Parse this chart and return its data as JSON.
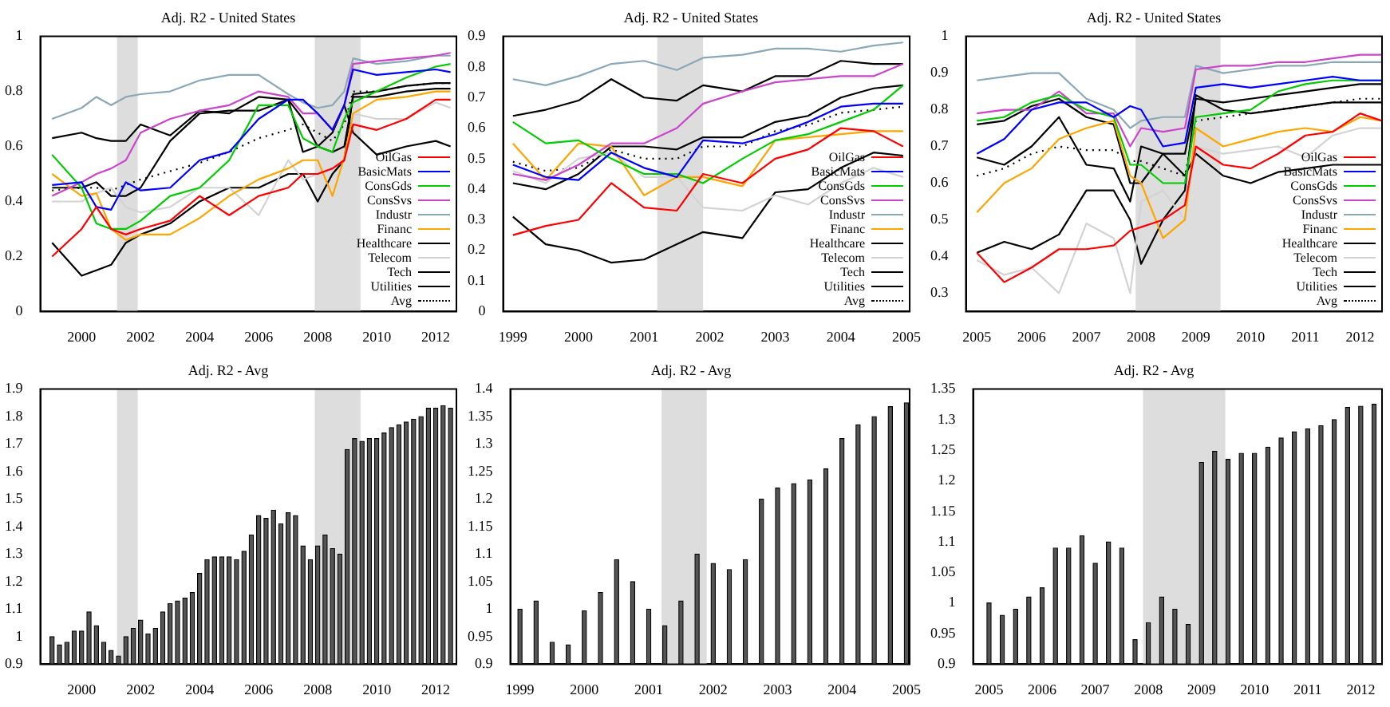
{
  "chart_data": [
    {
      "type": "line",
      "title": "Adj. R2 - United States",
      "x": [
        1999,
        2000,
        2000.5,
        2001,
        2001.5,
        2002,
        2003,
        2004,
        2005,
        2006,
        2007,
        2007.5,
        2008,
        2008.5,
        2008.9,
        2009.2,
        2010,
        2011,
        2012,
        2012.5
      ],
      "xlim": [
        1998.6,
        2012.7
      ],
      "xticks": [
        2000,
        2002,
        2004,
        2006,
        2008,
        2010,
        2012
      ],
      "ylim": [
        0,
        1
      ],
      "yticks": [
        0,
        0.2,
        0.4,
        0.6,
        0.8,
        1
      ],
      "grid": false,
      "legend": "bottom right",
      "bands": [
        {
          "axis": "x",
          "from": 2001.2,
          "to": 2001.9,
          "color": "#dddddd"
        },
        {
          "axis": "x",
          "from": 2007.9,
          "to": 2009.45,
          "color": "#dddddd"
        }
      ],
      "series": [
        {
          "name": "OilGas",
          "color": "#ff0000",
          "values": [
            0.2,
            0.3,
            0.38,
            0.3,
            0.28,
            0.3,
            0.33,
            0.42,
            0.35,
            0.42,
            0.45,
            0.5,
            0.5,
            0.52,
            0.55,
            0.68,
            0.66,
            0.7,
            0.77,
            0.77
          ]
        },
        {
          "name": "BasicMats",
          "color": "#0000ff",
          "values": [
            0.46,
            0.47,
            0.38,
            0.37,
            0.47,
            0.44,
            0.45,
            0.55,
            0.58,
            0.7,
            0.77,
            0.77,
            0.72,
            0.66,
            0.75,
            0.88,
            0.86,
            0.87,
            0.88,
            0.87
          ]
        },
        {
          "name": "ConsGds",
          "color": "#00cc00",
          "values": [
            0.57,
            0.45,
            0.32,
            0.3,
            0.3,
            0.33,
            0.42,
            0.45,
            0.55,
            0.75,
            0.75,
            0.63,
            0.6,
            0.58,
            0.7,
            0.76,
            0.8,
            0.85,
            0.89,
            0.9
          ]
        },
        {
          "name": "ConsSvs",
          "color": "#cc44cc",
          "values": [
            0.42,
            0.47,
            0.5,
            0.52,
            0.55,
            0.65,
            0.7,
            0.73,
            0.75,
            0.8,
            0.78,
            0.72,
            0.72,
            0.66,
            0.75,
            0.9,
            0.91,
            0.92,
            0.93,
            0.94
          ]
        },
        {
          "name": "Industr",
          "color": "#8aa8b8",
          "values": [
            0.7,
            0.74,
            0.78,
            0.75,
            0.78,
            0.79,
            0.8,
            0.84,
            0.86,
            0.86,
            0.79,
            0.76,
            0.74,
            0.75,
            0.8,
            0.92,
            0.9,
            0.91,
            0.93,
            0.93
          ]
        },
        {
          "name": "Financ",
          "color": "#ffa500",
          "values": [
            0.5,
            0.42,
            0.43,
            0.3,
            0.26,
            0.28,
            0.28,
            0.34,
            0.42,
            0.48,
            0.52,
            0.55,
            0.55,
            0.42,
            0.56,
            0.72,
            0.77,
            0.78,
            0.8,
            0.8
          ]
        },
        {
          "name": "Healthcare",
          "color": "#000000",
          "values": [
            0.63,
            0.65,
            0.63,
            0.62,
            0.62,
            0.68,
            0.64,
            0.73,
            0.72,
            0.78,
            0.77,
            0.58,
            0.6,
            0.58,
            0.6,
            0.78,
            0.78,
            0.8,
            0.81,
            0.81
          ]
        },
        {
          "name": "Telecom",
          "color": "#d3d3d3",
          "values": [
            0.4,
            0.4,
            0.43,
            0.45,
            0.38,
            0.36,
            0.38,
            0.45,
            0.45,
            0.35,
            0.55,
            0.48,
            0.5,
            0.52,
            0.55,
            0.72,
            0.7,
            0.7,
            0.76,
            0.74
          ]
        },
        {
          "name": "Tech",
          "color": "#000000",
          "values": [
            0.25,
            0.13,
            0.15,
            0.17,
            0.25,
            0.28,
            0.32,
            0.4,
            0.45,
            0.45,
            0.5,
            0.5,
            0.4,
            0.5,
            0.55,
            0.79,
            0.8,
            0.82,
            0.83,
            0.83
          ]
        },
        {
          "name": "Utilities",
          "color": "#000000",
          "values": [
            0.45,
            0.45,
            0.47,
            0.42,
            0.42,
            0.45,
            0.62,
            0.72,
            0.73,
            0.73,
            0.77,
            0.7,
            0.6,
            0.65,
            0.75,
            0.65,
            0.57,
            0.6,
            0.62,
            0.6
          ]
        },
        {
          "name": "Avg",
          "color": "#000000",
          "line_style": "dotted",
          "values": [
            0.44,
            0.45,
            0.45,
            0.44,
            0.46,
            0.48,
            0.51,
            0.54,
            0.58,
            0.63,
            0.66,
            0.68,
            0.65,
            0.62,
            0.68,
            0.8,
            0.8,
            0.82,
            0.83,
            0.83
          ]
        }
      ]
    },
    {
      "type": "line",
      "title": "Adj. R2 - United States",
      "x": [
        1999,
        1999.5,
        2000,
        2000.5,
        2001,
        2001.5,
        2001.9,
        2002.5,
        2003,
        2003.5,
        2004,
        2004.5,
        2004.95
      ],
      "xlim": [
        1998.85,
        2005.05
      ],
      "xticks": [
        1999,
        2000,
        2001,
        2002,
        2003,
        2004,
        2005
      ],
      "ylim": [
        0,
        0.9
      ],
      "yticks": [
        0,
        0.1,
        0.2,
        0.3,
        0.4,
        0.5,
        0.6,
        0.7,
        0.8,
        0.9
      ],
      "grid": false,
      "legend": "bottom right",
      "bands": [
        {
          "axis": "x",
          "from": 2001.2,
          "to": 2001.9,
          "color": "#dddddd"
        }
      ],
      "series": [
        {
          "name": "OilGas",
          "color": "#ff0000",
          "values": [
            0.25,
            0.28,
            0.3,
            0.42,
            0.34,
            0.33,
            0.45,
            0.42,
            0.5,
            0.53,
            0.6,
            0.59,
            0.54
          ]
        },
        {
          "name": "BasicMats",
          "color": "#0000ff",
          "values": [
            0.48,
            0.44,
            0.43,
            0.52,
            0.47,
            0.44,
            0.56,
            0.55,
            0.58,
            0.62,
            0.67,
            0.68,
            0.68
          ]
        },
        {
          "name": "ConsGds",
          "color": "#00cc00",
          "values": [
            0.62,
            0.55,
            0.56,
            0.5,
            0.45,
            0.45,
            0.42,
            0.5,
            0.56,
            0.58,
            0.62,
            0.66,
            0.74
          ]
        },
        {
          "name": "ConsSvs",
          "color": "#cc44cc",
          "values": [
            0.45,
            0.43,
            0.48,
            0.55,
            0.55,
            0.6,
            0.68,
            0.72,
            0.75,
            0.76,
            0.77,
            0.77,
            0.81
          ]
        },
        {
          "name": "Industr",
          "color": "#8aa8b8",
          "values": [
            0.76,
            0.74,
            0.77,
            0.81,
            0.82,
            0.79,
            0.83,
            0.84,
            0.86,
            0.86,
            0.85,
            0.87,
            0.88
          ]
        },
        {
          "name": "Financ",
          "color": "#ffa500",
          "values": [
            0.55,
            0.43,
            0.55,
            0.54,
            0.38,
            0.44,
            0.44,
            0.41,
            0.56,
            0.57,
            0.58,
            0.59,
            0.59
          ]
        },
        {
          "name": "Healthcare",
          "color": "#000000",
          "values": [
            0.64,
            0.66,
            0.69,
            0.76,
            0.7,
            0.69,
            0.74,
            0.72,
            0.77,
            0.77,
            0.82,
            0.81,
            0.81
          ]
        },
        {
          "name": "Telecom",
          "color": "#d3d3d3",
          "values": [
            0.46,
            0.42,
            0.5,
            0.52,
            0.44,
            0.44,
            0.34,
            0.33,
            0.38,
            0.35,
            0.42,
            0.47,
            0.44
          ]
        },
        {
          "name": "Tech",
          "color": "#000000",
          "values": [
            0.31,
            0.22,
            0.2,
            0.16,
            0.17,
            0.22,
            0.26,
            0.24,
            0.39,
            0.4,
            0.47,
            0.52,
            0.51
          ]
        },
        {
          "name": "Utilities",
          "color": "#000000",
          "values": [
            0.42,
            0.4,
            0.45,
            0.54,
            0.54,
            0.53,
            0.57,
            0.57,
            0.62,
            0.64,
            0.7,
            0.73,
            0.74
          ]
        },
        {
          "name": "Avg",
          "color": "#000000",
          "line_style": "dotted",
          "values": [
            0.49,
            0.46,
            0.47,
            0.53,
            0.5,
            0.5,
            0.54,
            0.54,
            0.59,
            0.61,
            0.65,
            0.66,
            0.67
          ]
        }
      ]
    },
    {
      "type": "line",
      "title": "Adj. R2 - United States",
      "x": [
        2005,
        2005.5,
        2006,
        2006.5,
        2007,
        2007.5,
        2007.8,
        2008,
        2008.4,
        2008.8,
        2009,
        2009.5,
        2010,
        2010.5,
        2011,
        2011.5,
        2012,
        2012.4
      ],
      "xlim": [
        2004.8,
        2012.4
      ],
      "xticks": [
        2005,
        2006,
        2007,
        2008,
        2009,
        2010,
        2011,
        2012
      ],
      "ylim": [
        0.25,
        1
      ],
      "yticks": [
        0.3,
        0.4,
        0.5,
        0.6,
        0.7,
        0.8,
        0.9,
        1
      ],
      "grid": false,
      "legend": "bottom right",
      "bands": [
        {
          "axis": "x",
          "from": 2007.9,
          "to": 2009.45,
          "color": "#dddddd"
        }
      ],
      "series": [
        {
          "name": "OilGas",
          "color": "#ff0000",
          "values": [
            0.41,
            0.33,
            0.37,
            0.42,
            0.42,
            0.43,
            0.47,
            0.48,
            0.5,
            0.54,
            0.7,
            0.65,
            0.64,
            0.68,
            0.73,
            0.74,
            0.79,
            0.77
          ]
        },
        {
          "name": "BasicMats",
          "color": "#0000ff",
          "values": [
            0.68,
            0.72,
            0.8,
            0.82,
            0.82,
            0.78,
            0.81,
            0.8,
            0.7,
            0.71,
            0.86,
            0.87,
            0.86,
            0.87,
            0.88,
            0.89,
            0.88,
            0.88
          ]
        },
        {
          "name": "ConsGds",
          "color": "#00cc00",
          "values": [
            0.77,
            0.78,
            0.82,
            0.84,
            0.8,
            0.78,
            0.65,
            0.65,
            0.6,
            0.6,
            0.78,
            0.79,
            0.8,
            0.85,
            0.87,
            0.88,
            0.88,
            0.88
          ]
        },
        {
          "name": "ConsSvs",
          "color": "#cc44cc",
          "values": [
            0.79,
            0.8,
            0.8,
            0.85,
            0.79,
            0.79,
            0.7,
            0.75,
            0.74,
            0.75,
            0.91,
            0.92,
            0.92,
            0.93,
            0.93,
            0.94,
            0.95,
            0.95
          ]
        },
        {
          "name": "Industr",
          "color": "#8aa8b8",
          "values": [
            0.88,
            0.89,
            0.9,
            0.9,
            0.83,
            0.8,
            0.75,
            0.77,
            0.78,
            0.78,
            0.92,
            0.9,
            0.91,
            0.92,
            0.92,
            0.93,
            0.93,
            0.93
          ]
        },
        {
          "name": "Financ",
          "color": "#ffa500",
          "values": [
            0.52,
            0.6,
            0.64,
            0.72,
            0.75,
            0.77,
            0.62,
            0.6,
            0.45,
            0.5,
            0.75,
            0.7,
            0.72,
            0.74,
            0.75,
            0.74,
            0.78,
            0.77
          ]
        },
        {
          "name": "Healthcare",
          "color": "#000000",
          "values": [
            0.76,
            0.77,
            0.81,
            0.83,
            0.78,
            0.76,
            0.6,
            0.6,
            0.68,
            0.68,
            0.83,
            0.82,
            0.83,
            0.84,
            0.85,
            0.86,
            0.87,
            0.87
          ]
        },
        {
          "name": "Telecom",
          "color": "#d3d3d3",
          "values": [
            0.39,
            0.35,
            0.37,
            0.3,
            0.49,
            0.45,
            0.3,
            0.55,
            0.58,
            0.5,
            0.7,
            0.68,
            0.69,
            0.7,
            0.67,
            0.73,
            0.75,
            0.75
          ]
        },
        {
          "name": "Tech",
          "color": "#000000",
          "values": [
            0.41,
            0.44,
            0.42,
            0.46,
            0.58,
            0.58,
            0.5,
            0.38,
            0.5,
            0.58,
            0.84,
            0.8,
            0.79,
            0.8,
            0.81,
            0.82,
            0.82,
            0.82
          ]
        },
        {
          "name": "Utilities",
          "color": "#000000",
          "values": [
            0.67,
            0.65,
            0.7,
            0.78,
            0.65,
            0.64,
            0.55,
            0.7,
            0.68,
            0.62,
            0.68,
            0.62,
            0.6,
            0.63,
            0.64,
            0.65,
            0.65,
            0.65
          ]
        },
        {
          "name": "Avg",
          "color": "#000000",
          "line_style": "dotted",
          "values": [
            0.62,
            0.64,
            0.68,
            0.7,
            0.69,
            0.69,
            0.66,
            0.66,
            0.64,
            0.62,
            0.77,
            0.78,
            0.79,
            0.8,
            0.81,
            0.82,
            0.83,
            0.83
          ]
        }
      ]
    },
    {
      "type": "bar",
      "title": "Adj. R2 - Avg",
      "color": "#555555",
      "xlim": [
        1998.6,
        2012.7
      ],
      "xticks": [
        2000,
        2002,
        2004,
        2006,
        2008,
        2010,
        2012
      ],
      "ylim": [
        0.9,
        1.9
      ],
      "yticks": [
        0.9,
        1,
        1.1,
        1.2,
        1.3,
        1.4,
        1.5,
        1.6,
        1.7,
        1.8,
        1.9
      ],
      "grid": false,
      "bands": [
        {
          "axis": "x",
          "from": 2001.2,
          "to": 2001.9,
          "color": "#dddddd"
        },
        {
          "axis": "x",
          "from": 2007.9,
          "to": 2009.45,
          "color": "#dddddd"
        }
      ],
      "x": [
        1999,
        1999.25,
        1999.5,
        1999.75,
        2000,
        2000.25,
        2000.5,
        2000.75,
        2001,
        2001.25,
        2001.5,
        2001.75,
        2002,
        2002.25,
        2002.5,
        2002.75,
        2003,
        2003.25,
        2003.5,
        2003.75,
        2004,
        2004.25,
        2004.5,
        2004.75,
        2005,
        2005.25,
        2005.5,
        2005.75,
        2006,
        2006.25,
        2006.5,
        2006.75,
        2007,
        2007.25,
        2007.5,
        2007.75,
        2008,
        2008.25,
        2008.5,
        2008.75,
        2009,
        2009.25,
        2009.5,
        2009.75,
        2010,
        2010.25,
        2010.5,
        2010.75,
        2011,
        2011.25,
        2011.5,
        2011.75,
        2012,
        2012.25,
        2012.5
      ],
      "values": [
        1.0,
        0.97,
        0.98,
        1.02,
        1.02,
        1.09,
        1.04,
        0.98,
        0.95,
        0.93,
        1.0,
        1.03,
        1.06,
        1.01,
        1.03,
        1.09,
        1.12,
        1.13,
        1.14,
        1.16,
        1.23,
        1.28,
        1.29,
        1.29,
        1.29,
        1.28,
        1.31,
        1.37,
        1.44,
        1.43,
        1.46,
        1.41,
        1.45,
        1.44,
        1.33,
        1.28,
        1.33,
        1.37,
        1.32,
        1.3,
        1.68,
        1.72,
        1.71,
        1.72,
        1.72,
        1.74,
        1.76,
        1.77,
        1.78,
        1.79,
        1.8,
        1.83,
        1.83,
        1.84,
        1.83
      ]
    },
    {
      "type": "bar",
      "title": "Adj. R2 - Avg",
      "color": "#555555",
      "xlim": [
        1998.85,
        2005.05
      ],
      "xticks": [
        1999,
        2000,
        2001,
        2002,
        2003,
        2004,
        2005
      ],
      "ylim": [
        0.9,
        1.4
      ],
      "yticks": [
        0.9,
        0.95,
        1,
        1.05,
        1.1,
        1.15,
        1.2,
        1.25,
        1.3,
        1.35,
        1.4
      ],
      "grid": false,
      "bands": [
        {
          "axis": "x",
          "from": 2001.2,
          "to": 2001.9,
          "color": "#dddddd"
        }
      ],
      "x": [
        1999,
        1999.25,
        1999.5,
        1999.75,
        2000,
        2000.25,
        2000.5,
        2000.75,
        2001,
        2001.25,
        2001.5,
        2001.75,
        2002,
        2002.25,
        2002.5,
        2002.75,
        2003,
        2003.25,
        2003.5,
        2003.75,
        2004,
        2004.25,
        2004.5,
        2004.75,
        2005
      ],
      "values": [
        1.0,
        1.015,
        0.94,
        0.935,
        0.997,
        1.03,
        1.09,
        1.05,
        1.0,
        0.97,
        1.015,
        1.1,
        1.083,
        1.072,
        1.09,
        1.2,
        1.22,
        1.228,
        1.235,
        1.255,
        1.31,
        1.335,
        1.35,
        1.368,
        1.375
      ]
    },
    {
      "type": "bar",
      "title": "Adj. R2 - Avg",
      "color": "#555555",
      "xlim": [
        2004.7,
        2012.4
      ],
      "xticks": [
        2005,
        2006,
        2007,
        2008,
        2009,
        2010,
        2011,
        2012
      ],
      "ylim": [
        0.9,
        1.35
      ],
      "yticks": [
        0.9,
        0.95,
        1,
        1.05,
        1.1,
        1.15,
        1.2,
        1.25,
        1.3,
        1.35
      ],
      "grid": false,
      "bands": [
        {
          "axis": "x",
          "from": 2007.9,
          "to": 2009.45,
          "color": "#dddddd"
        }
      ],
      "x": [
        2005,
        2005.25,
        2005.5,
        2005.75,
        2006,
        2006.25,
        2006.5,
        2006.75,
        2007,
        2007.25,
        2007.5,
        2007.75,
        2008,
        2008.25,
        2008.5,
        2008.75,
        2009,
        2009.25,
        2009.5,
        2009.75,
        2010,
        2010.25,
        2010.5,
        2010.75,
        2011,
        2011.25,
        2011.5,
        2011.75,
        2012,
        2012.25
      ],
      "values": [
        1.0,
        0.98,
        0.99,
        1.01,
        1.025,
        1.09,
        1.09,
        1.11,
        1.065,
        1.1,
        1.09,
        0.94,
        0.968,
        1.01,
        0.99,
        0.965,
        1.23,
        1.248,
        1.235,
        1.245,
        1.245,
        1.255,
        1.27,
        1.28,
        1.285,
        1.29,
        1.3,
        1.32,
        1.322,
        1.325
      ]
    }
  ]
}
